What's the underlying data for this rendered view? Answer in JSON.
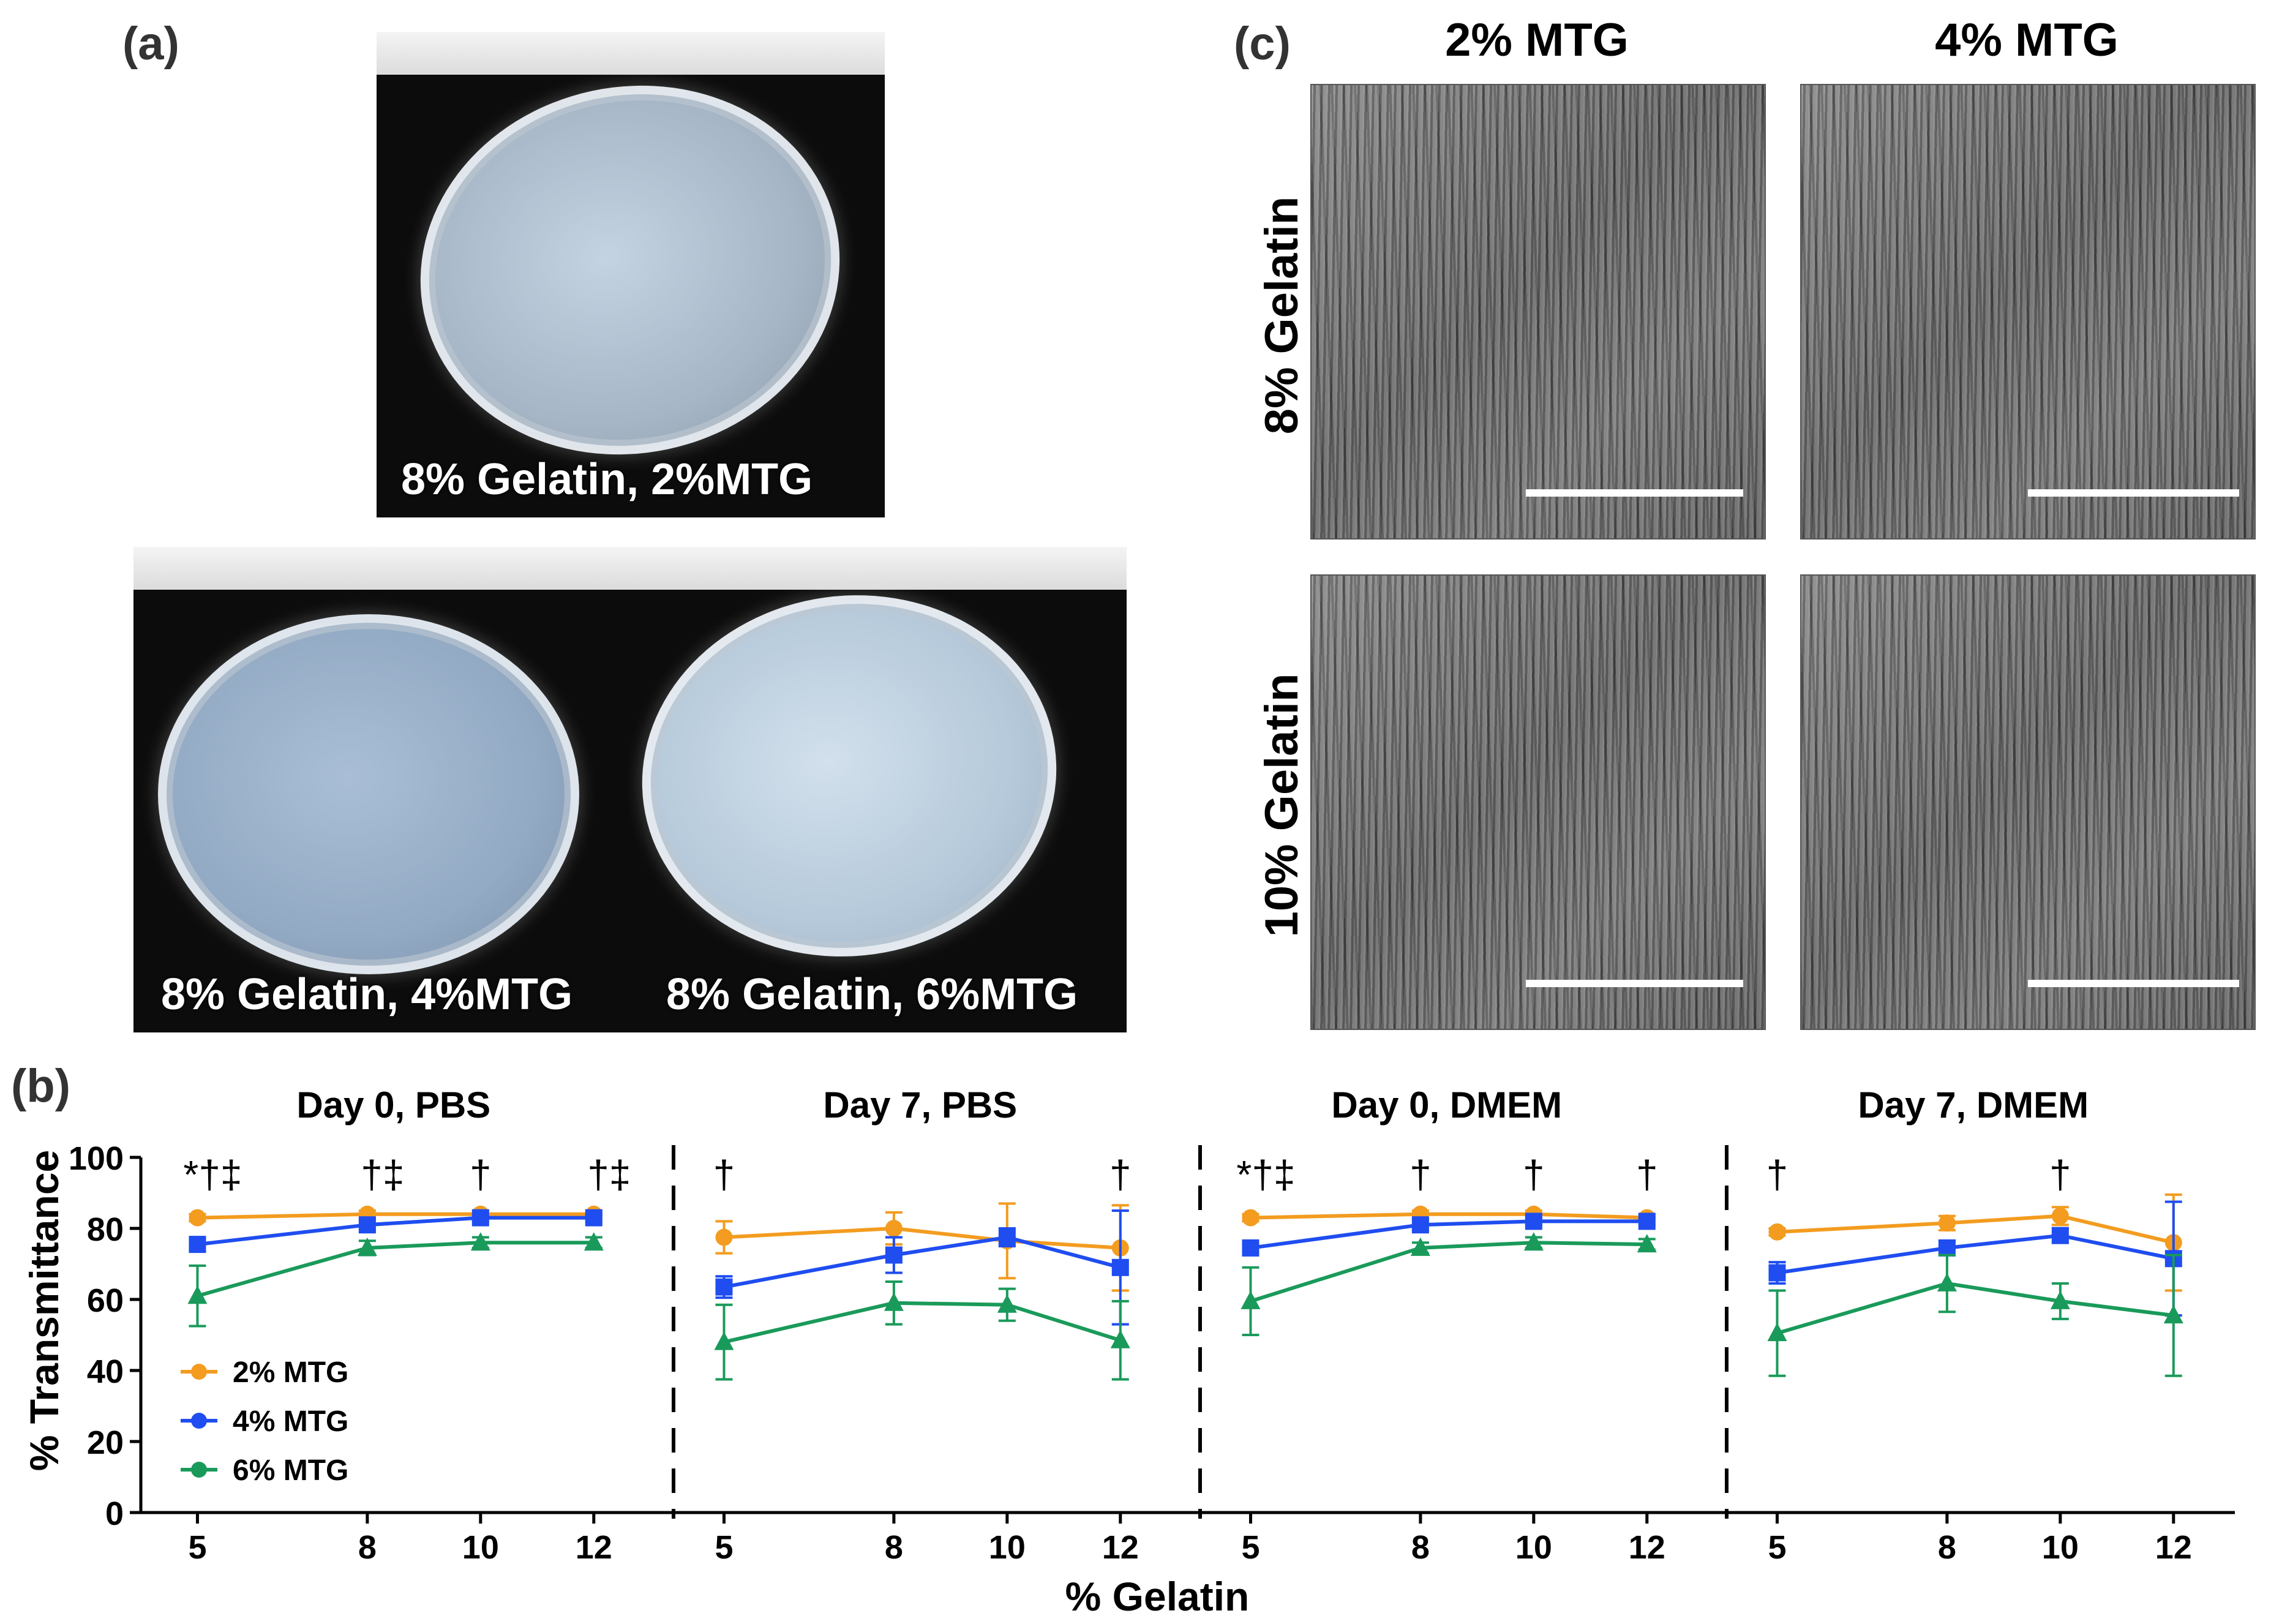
{
  "panel_a": {
    "letter": "(a)",
    "photos": [
      {
        "label": "8% Gelatin, 2%MTG"
      },
      {
        "label_left": "8% Gelatin, 4%MTG",
        "label_right": "8% Gelatin, 6%MTG"
      }
    ]
  },
  "panel_b": {
    "letter": "(b)"
  },
  "panel_c": {
    "letter": "(c)",
    "col_headers": [
      "2% MTG",
      "4% MTG"
    ],
    "row_headers": [
      "8% Gelatin",
      "10% Gelatin"
    ]
  },
  "chart_data": {
    "type": "line",
    "ylabel": "% Transmittance",
    "xlabel": "% Gelatin",
    "ylim": [
      0,
      100
    ],
    "yticks": [
      0,
      20,
      40,
      60,
      80,
      100
    ],
    "xticks": [
      5,
      8,
      10,
      12
    ],
    "grid": false,
    "legend_position": "lower-left",
    "colors": {
      "2% MTG": "#f39c1f",
      "4% MTG": "#1f4df0",
      "6% MTG": "#1a9a5a"
    },
    "legend": [
      "2% MTG",
      "4% MTG",
      "6% MTG"
    ],
    "panels": [
      {
        "title": "Day 0, PBS",
        "x": [
          5,
          8,
          10,
          12
        ],
        "significance": [
          {
            "x": 5,
            "text": "*†‡"
          },
          {
            "x": 8,
            "text": "†‡"
          },
          {
            "x": 10,
            "text": "†"
          },
          {
            "x": 12,
            "text": "†‡"
          }
        ],
        "series": [
          {
            "name": "2% MTG",
            "marker": "circle",
            "values": [
              83,
              84,
              84,
              84
            ],
            "err": [
              1,
              1,
              1,
              1
            ]
          },
          {
            "name": "4% MTG",
            "marker": "square",
            "values": [
              75.5,
              81,
              83,
              83
            ],
            "err": [
              1.5,
              1.5,
              1,
              1
            ]
          },
          {
            "name": "6% MTG",
            "marker": "triangle",
            "values": [
              61,
              74.5,
              76,
              76
            ],
            "err": [
              8.5,
              2,
              1.5,
              1.5
            ]
          }
        ]
      },
      {
        "title": "Day 7, PBS",
        "x": [
          5,
          8,
          10,
          12
        ],
        "significance": [
          {
            "x": 5,
            "text": "†"
          },
          {
            "x": 12,
            "text": "†"
          }
        ],
        "series": [
          {
            "name": "2% MTG",
            "marker": "circle",
            "values": [
              77.5,
              80,
              76.5,
              74.5
            ],
            "err": [
              4.5,
              4.5,
              10.5,
              12
            ]
          },
          {
            "name": "4% MTG",
            "marker": "square",
            "values": [
              63.5,
              72.5,
              77.5,
              69
            ],
            "err": [
              3,
              5,
              2.5,
              16
            ]
          },
          {
            "name": "6% MTG",
            "marker": "triangle",
            "values": [
              48,
              59,
              58.5,
              48.5
            ],
            "err": [
              10.5,
              6,
              4.5,
              11
            ]
          }
        ]
      },
      {
        "title": "Day 0, DMEM",
        "x": [
          5,
          8,
          10,
          12
        ],
        "significance": [
          {
            "x": 5,
            "text": "*†‡"
          },
          {
            "x": 8,
            "text": "†"
          },
          {
            "x": 10,
            "text": "†"
          },
          {
            "x": 12,
            "text": "†"
          }
        ],
        "series": [
          {
            "name": "2% MTG",
            "marker": "circle",
            "values": [
              83,
              84,
              84,
              83
            ],
            "err": [
              1,
              1,
              1,
              1
            ]
          },
          {
            "name": "4% MTG",
            "marker": "square",
            "values": [
              74.5,
              81,
              82,
              82
            ],
            "err": [
              1.5,
              1.5,
              1,
              1
            ]
          },
          {
            "name": "6% MTG",
            "marker": "triangle",
            "values": [
              59.5,
              74.5,
              76,
              75.5
            ],
            "err": [
              9.5,
              1.5,
              1.5,
              1.5
            ]
          }
        ]
      },
      {
        "title": "Day 7, DMEM",
        "x": [
          5,
          8,
          10,
          12
        ],
        "significance": [
          {
            "x": 5,
            "text": "†"
          },
          {
            "x": 10,
            "text": "†"
          }
        ],
        "series": [
          {
            "name": "2% MTG",
            "marker": "circle",
            "values": [
              79,
              81.5,
              83.5,
              76
            ],
            "err": [
              1,
              2,
              2.5,
              13.5
            ]
          },
          {
            "name": "4% MTG",
            "marker": "square",
            "values": [
              67.5,
              74.5,
              78,
              71.5
            ],
            "err": [
              3,
              2,
              2,
              16
            ]
          },
          {
            "name": "6% MTG",
            "marker": "triangle",
            "values": [
              50.5,
              64.5,
              59.5,
              55.5
            ],
            "err": [
              12,
              8,
              5,
              17
            ]
          }
        ]
      }
    ]
  }
}
